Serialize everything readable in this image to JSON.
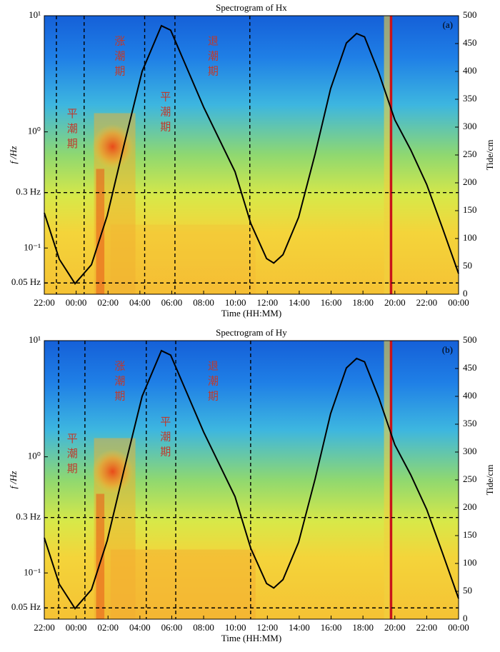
{
  "chart_data": [
    {
      "type": "line",
      "title": "Spectrogram of Hx",
      "panel_label": "(a)",
      "xlabel": "Time (HH:MM)",
      "ylabel": "f /Hz",
      "y2label": "Tide/cm",
      "xlim": [
        22,
        48
      ],
      "xticks": [
        {
          "value": 22,
          "label": "22:00"
        },
        {
          "value": 24,
          "label": "00:00"
        },
        {
          "value": 26,
          "label": "02:00"
        },
        {
          "value": 28,
          "label": "04:00"
        },
        {
          "value": 30,
          "label": "06:00"
        },
        {
          "value": 32,
          "label": "08:00"
        },
        {
          "value": 34,
          "label": "10:00"
        },
        {
          "value": 36,
          "label": "12:00"
        },
        {
          "value": 38,
          "label": "14:00"
        },
        {
          "value": 40,
          "label": "16:00"
        },
        {
          "value": 42,
          "label": "18:00"
        },
        {
          "value": 44,
          "label": "20:00"
        },
        {
          "value": 46,
          "label": "22:00"
        },
        {
          "value": 48,
          "label": "00:00"
        }
      ],
      "log_y": true,
      "ylim": [
        0.04,
        10
      ],
      "yticks": [
        {
          "value": 0.1,
          "label": "10⁻¹"
        },
        {
          "value": 1,
          "label": "10⁰"
        },
        {
          "value": 10,
          "label": "10¹"
        }
      ],
      "y2lim": [
        0,
        500
      ],
      "y2ticks": [
        0,
        50,
        100,
        150,
        200,
        250,
        300,
        350,
        400,
        450,
        500
      ],
      "hlines": [
        {
          "value": 0.3,
          "label": "0.3 Hz"
        },
        {
          "value": 0.05,
          "label": "0.05 Hz"
        }
      ],
      "vlines": [
        22.76,
        24.5,
        28.3,
        30.2,
        34.9
      ],
      "annotations": [
        "平潮期",
        "涨潮期",
        "平潮期",
        "退潮期"
      ],
      "x": [
        22,
        22.94,
        23.93,
        24.96,
        25.95,
        26.98,
        28.14,
        29.35,
        29.93,
        32,
        33.97,
        34.96,
        35.95,
        36.4,
        36.98,
        37.96,
        39,
        39.97,
        40.96,
        41.6,
        42.1,
        43,
        44,
        45,
        46,
        47,
        48
      ],
      "series": [
        {
          "color": "#000000",
          "axis": "y2",
          "values": [
            146,
            63,
            19,
            53,
            141,
            265,
            400,
            482,
            474,
            336,
            220,
            127,
            64,
            56,
            71,
            138,
            252,
            369,
            451,
            468,
            462,
            397,
            313,
            259,
            197,
            118,
            37
          ]
        }
      ]
    },
    {
      "type": "line",
      "title": "Spectrogram of Hy",
      "panel_label": "(b)",
      "xlabel": "Time (HH:MM)",
      "ylabel": "f /Hz",
      "y2label": "Tide/cm",
      "xlim": [
        22,
        48
      ],
      "xticks": [
        {
          "value": 22,
          "label": "22:00"
        },
        {
          "value": 24,
          "label": "00:00"
        },
        {
          "value": 26,
          "label": "02:00"
        },
        {
          "value": 28,
          "label": "04:00"
        },
        {
          "value": 30,
          "label": "06:00"
        },
        {
          "value": 32,
          "label": "08:00"
        },
        {
          "value": 34,
          "label": "10:00"
        },
        {
          "value": 36,
          "label": "12:00"
        },
        {
          "value": 38,
          "label": "14:00"
        },
        {
          "value": 40,
          "label": "16:00"
        },
        {
          "value": 42,
          "label": "18:00"
        },
        {
          "value": 44,
          "label": "20:00"
        },
        {
          "value": 46,
          "label": "22:00"
        },
        {
          "value": 48,
          "label": "00:00"
        }
      ],
      "log_y": true,
      "ylim": [
        0.04,
        10
      ],
      "yticks": [
        {
          "value": 0.1,
          "label": "10⁻¹"
        },
        {
          "value": 1,
          "label": "10⁰"
        },
        {
          "value": 10,
          "label": "10¹"
        }
      ],
      "y2lim": [
        0,
        500
      ],
      "y2ticks": [
        0,
        50,
        100,
        150,
        200,
        250,
        300,
        350,
        400,
        450,
        500
      ],
      "hlines": [
        {
          "value": 0.3,
          "label": "0.3 Hz"
        },
        {
          "value": 0.05,
          "label": "0.05 Hz"
        }
      ],
      "vlines": [
        22.9,
        24.55,
        28.4,
        30.25,
        34.95
      ],
      "annotations": [
        "平潮期",
        "涨潮期",
        "平潮期",
        "退潮期"
      ],
      "x": [
        22,
        22.94,
        23.93,
        24.96,
        25.95,
        26.98,
        28.14,
        29.35,
        29.93,
        32,
        33.97,
        34.96,
        35.95,
        36.4,
        36.98,
        37.96,
        39,
        39.97,
        40.96,
        41.6,
        42.1,
        43,
        44,
        45,
        46,
        47,
        48
      ],
      "series": [
        {
          "color": "#000000",
          "axis": "y2",
          "values": [
            146,
            63,
            19,
            53,
            141,
            265,
            400,
            482,
            474,
            336,
            220,
            127,
            64,
            56,
            71,
            138,
            252,
            369,
            451,
            468,
            462,
            397,
            313,
            259,
            197,
            118,
            37
          ]
        }
      ]
    }
  ]
}
